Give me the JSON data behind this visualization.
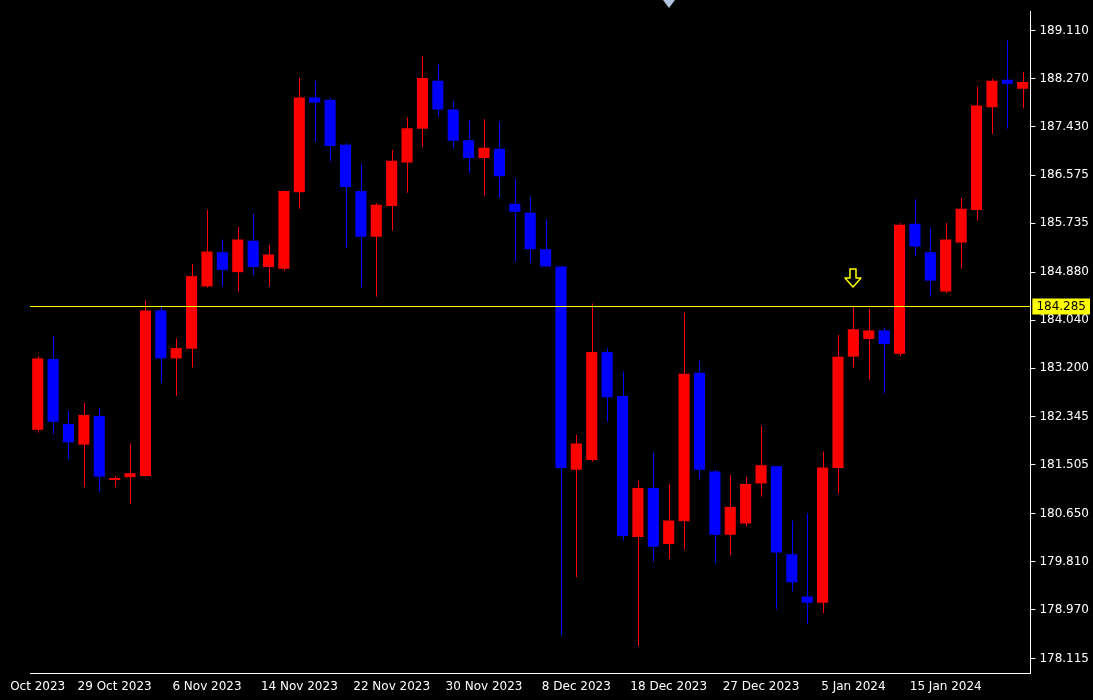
{
  "chart_data": {
    "type": "candlestick",
    "categories": [
      "Oct 2023",
      null,
      null,
      null,
      null,
      "29 Oct 2023",
      null,
      null,
      null,
      null,
      null,
      "6 Nov 2023",
      null,
      null,
      null,
      null,
      null,
      "14 Nov 2023",
      null,
      null,
      null,
      null,
      null,
      "22 Nov 2023",
      null,
      null,
      null,
      null,
      null,
      "30 Nov 2023",
      null,
      null,
      null,
      null,
      null,
      "8 Dec 2023",
      null,
      null,
      null,
      null,
      null,
      "18 Dec 2023",
      null,
      null,
      null,
      null,
      null,
      "27 Dec 2023",
      null,
      null,
      null,
      null,
      null,
      "5 Jan 2024",
      null,
      null,
      null,
      null,
      null,
      "15 Jan 2024",
      null,
      null,
      null,
      null,
      null
    ],
    "ohlc": [
      [
        182.12,
        183.41,
        182.07,
        183.37
      ],
      [
        183.36,
        183.76,
        182.05,
        182.26
      ],
      [
        182.22,
        182.45,
        181.6,
        181.9
      ],
      [
        181.86,
        182.59,
        181.12,
        182.38
      ],
      [
        182.36,
        182.5,
        181.03,
        181.3
      ],
      [
        181.24,
        181.31,
        181.12,
        181.27
      ],
      [
        181.29,
        181.88,
        180.82,
        181.36
      ],
      [
        181.31,
        184.38,
        181.3,
        184.21
      ],
      [
        184.21,
        184.28,
        182.94,
        183.37
      ],
      [
        183.37,
        183.72,
        182.71,
        183.55
      ],
      [
        183.54,
        185.02,
        183.21,
        184.81
      ],
      [
        184.63,
        185.97,
        184.61,
        185.24
      ],
      [
        185.23,
        185.45,
        184.63,
        184.92
      ],
      [
        184.88,
        185.67,
        184.54,
        185.45
      ],
      [
        185.43,
        185.9,
        184.83,
        184.97
      ],
      [
        184.97,
        185.35,
        184.63,
        185.19
      ],
      [
        184.94,
        186.31,
        184.9,
        186.3
      ],
      [
        186.28,
        188.28,
        185.99,
        187.94
      ],
      [
        187.94,
        188.23,
        187.16,
        187.85
      ],
      [
        187.9,
        187.93,
        186.82,
        187.09
      ],
      [
        187.11,
        187.14,
        185.3,
        186.37
      ],
      [
        186.3,
        186.78,
        184.61,
        185.5
      ],
      [
        185.5,
        186.09,
        184.45,
        186.06
      ],
      [
        186.04,
        187.02,
        185.61,
        186.83
      ],
      [
        186.8,
        187.59,
        186.27,
        187.4
      ],
      [
        187.39,
        188.66,
        187.08,
        188.28
      ],
      [
        188.23,
        188.52,
        187.6,
        187.73
      ],
      [
        187.73,
        187.87,
        187.04,
        187.18
      ],
      [
        187.19,
        187.54,
        186.61,
        186.88
      ],
      [
        186.88,
        187.56,
        186.22,
        187.06
      ],
      [
        187.04,
        187.52,
        186.18,
        186.56
      ],
      [
        186.08,
        186.52,
        185.06,
        185.94
      ],
      [
        185.92,
        186.19,
        185.04,
        185.28
      ],
      [
        185.28,
        185.81,
        184.97,
        184.98
      ],
      [
        184.98,
        184.98,
        178.52,
        181.45
      ],
      [
        181.42,
        182.03,
        179.54,
        181.88
      ],
      [
        181.59,
        184.33,
        181.56,
        183.48
      ],
      [
        183.48,
        183.55,
        182.26,
        182.69
      ],
      [
        182.71,
        183.14,
        180.18,
        180.26
      ],
      [
        180.24,
        181.22,
        178.33,
        181.1
      ],
      [
        181.1,
        181.72,
        179.81,
        180.07
      ],
      [
        180.12,
        181.17,
        179.86,
        180.53
      ],
      [
        180.52,
        184.17,
        180.02,
        183.1
      ],
      [
        183.12,
        183.33,
        181.26,
        181.42
      ],
      [
        181.39,
        181.42,
        179.78,
        180.28
      ],
      [
        180.28,
        181.33,
        179.93,
        180.77
      ],
      [
        180.48,
        181.29,
        180.43,
        181.17
      ],
      [
        181.18,
        182.19,
        180.95,
        181.5
      ],
      [
        181.48,
        181.48,
        178.98,
        179.97
      ],
      [
        179.94,
        180.53,
        179.29,
        179.45
      ],
      [
        179.2,
        180.66,
        178.72,
        179.09
      ],
      [
        179.09,
        181.74,
        178.91,
        181.46
      ],
      [
        181.45,
        183.78,
        181.0,
        183.4
      ],
      [
        183.4,
        184.28,
        183.21,
        183.88
      ],
      [
        183.71,
        184.23,
        183.0,
        183.86
      ],
      [
        183.86,
        183.91,
        182.76,
        183.62
      ],
      [
        183.45,
        185.74,
        183.41,
        185.71
      ],
      [
        185.73,
        186.16,
        185.16,
        185.33
      ],
      [
        185.23,
        185.66,
        184.45,
        184.73
      ],
      [
        184.54,
        185.74,
        184.51,
        185.45
      ],
      [
        185.4,
        186.18,
        184.94,
        185.99
      ],
      [
        185.97,
        188.13,
        185.78,
        187.8
      ],
      [
        187.77,
        188.27,
        187.3,
        188.23
      ],
      [
        188.25,
        188.94,
        187.39,
        188.18
      ],
      [
        188.09,
        188.39,
        187.75,
        188.21
      ]
    ],
    "colors": [
      "#ff0000",
      "#0000ff",
      "#0000ff",
      "#ff0000",
      "#0000ff",
      "#ff0000",
      "#ff0000",
      "#ff0000",
      "#0000ff",
      "#ff0000",
      "#ff0000",
      "#ff0000",
      "#0000ff",
      "#ff0000",
      "#0000ff",
      "#ff0000",
      "#ff0000",
      "#ff0000",
      "#0000ff",
      "#0000ff",
      "#0000ff",
      "#0000ff",
      "#ff0000",
      "#ff0000",
      "#ff0000",
      "#ff0000",
      "#0000ff",
      "#0000ff",
      "#0000ff",
      "#ff0000",
      "#0000ff",
      "#0000ff",
      "#0000ff",
      "#0000ff",
      "#0000ff",
      "#ff0000",
      "#ff0000",
      "#0000ff",
      "#0000ff",
      "#ff0000",
      "#0000ff",
      "#ff0000",
      "#ff0000",
      "#0000ff",
      "#0000ff",
      "#ff0000",
      "#ff0000",
      "#ff0000",
      "#0000ff",
      "#0000ff",
      "#0000ff",
      "#ff0000",
      "#ff0000",
      "#ff0000",
      "#ff0000",
      "#0000ff",
      "#ff0000",
      "#0000ff",
      "#0000ff",
      "#ff0000",
      "#ff0000",
      "#ff0000",
      "#ff0000",
      "#0000ff",
      "#ff0000"
    ],
    "ylim": [
      177.85,
      189.45
    ],
    "yticks": [
      {
        "value": 178.115,
        "label": "178.115"
      },
      {
        "value": 178.97,
        "label": "178.970"
      },
      {
        "value": 179.81,
        "label": "179.810"
      },
      {
        "value": 180.65,
        "label": "180.650"
      },
      {
        "value": 181.505,
        "label": "181.505"
      },
      {
        "value": 182.345,
        "label": "182.345"
      },
      {
        "value": 183.2,
        "label": "183.200"
      },
      {
        "value": 184.04,
        "label": "184.040"
      },
      {
        "value": 184.88,
        "label": "184.880"
      },
      {
        "value": 185.735,
        "label": "185.735"
      },
      {
        "value": 186.575,
        "label": "186.575"
      },
      {
        "value": 187.43,
        "label": "187.430"
      },
      {
        "value": 188.27,
        "label": "188.270"
      },
      {
        "value": 189.11,
        "label": "189.110"
      }
    ],
    "ref_lines": [
      {
        "axis": "y",
        "value": 184.285,
        "label": "184.285",
        "color": "#ffff00"
      }
    ],
    "grid": false,
    "legend": false
  }
}
